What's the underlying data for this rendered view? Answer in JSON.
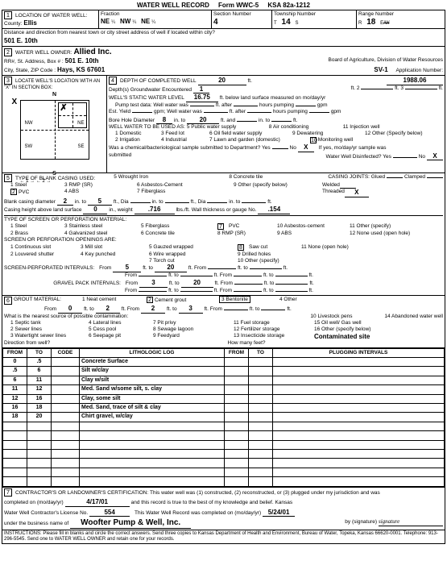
{
  "title": "WATER WELL RECORD",
  "form_no": "Form WWC-5",
  "ksa": "KSA 82a-1212",
  "loc": {
    "label1": "LOCATION OF WATER WELL:",
    "county_label": "County:",
    "county": "Ellis",
    "fraction_label": "Fraction",
    "f1": "NE",
    "f1s": "¼",
    "f2": "NW",
    "f2s": "¼",
    "f3": "NE",
    "f3s": "¼",
    "section_label": "Section Number",
    "section": "4",
    "township_label": "Township Number",
    "township": "14",
    "township_s": "S",
    "range_label": "Range Number",
    "range": "18",
    "range_ew": "E/W",
    "dist_label": "Distance and direction from nearest town or city street address of well if located within city?",
    "dist": "501 E. 10th"
  },
  "owner": {
    "label": "WATER WELL OWNER:",
    "name": "Allied Inc.",
    "addr_label": "RR#, St. Address, Box #  :",
    "addr": "501 E. 10th",
    "city_label": "City, State, ZIP Code  :",
    "city": "Hays, KS 67601",
    "board": "Board of Agriculture, Division of Water Resources",
    "sv": "SV-1",
    "appno_label": "Application Number:"
  },
  "sec3": {
    "label": "LOCATE WELL'S LOCATION WITH AN \"X\" IN SECTION BOX:",
    "n": "N",
    "s": "S",
    "nw": "NW",
    "ne": "NE",
    "sw": "SW",
    "se": "SE",
    "arrows": "← 1 →  ← 2 →"
  },
  "sec4": {
    "label": "DEPTH OF COMPLETED WELL",
    "depth": "20",
    "ft": "ft.",
    "depth_gw_label": "Depth(s) Groundwater Encountered",
    "v1": "1",
    "v2": "1988.06",
    "v3": "3",
    "static_label": "WELL'S STATIC WATER LEVEL",
    "static": "16.75",
    "static_after": "ft. below land surface measured on mo/day/yr",
    "pump_label": "Pump test data:  Well water was",
    "after": "ft. after",
    "hours": "hours pumping",
    "gpm": "gpm",
    "est_label": "Est. Yield",
    "gpm2": "gpm;  Well water was",
    "bore_label": "Bore Hole Diameter",
    "bore": "8",
    "in_to": "in. to",
    "bore_to": "20",
    "ft_and": "ft. and",
    "in_to2": "in. to",
    "ft2": "ft.",
    "use_label": "WELL WATER TO BE USED AS:",
    "opts": [
      "1  Domestic",
      "2  Irrigation",
      "3  Feed lot",
      "4  Industrial",
      "5  Public water supply",
      "6  Oil field water supply",
      "7  Lawn and garden (domestic)",
      "8  Air conditioning",
      "9  Dewatering",
      "10  Monitoring well",
      "11  Injection well",
      "12  Other (Specify below)"
    ],
    "chem_label": "Was a chemical/bacteriological sample submitted to Department?  Yes",
    "no": "No",
    "x": "X",
    "if_yes": "If yes, mo/day/yr sample was",
    "submitted": "submitted",
    "disinfect": "Water Well Disinfected?  Yes"
  },
  "sec5": {
    "label": "TYPE OF BLANK CASING USED:",
    "opts1": [
      "1  Steel",
      "2  PVC",
      "3  RMP (SR)",
      "4  ABS",
      "5  Wrought Iron",
      "6  Asbestos-Cement",
      "7  Fiberglass",
      "8  Concrete tile",
      "9  Other (specify below)"
    ],
    "joints_label": "CASING JOINTS:  Glued",
    "clamped": "Clamped",
    "welded": "Welded",
    "threaded": "Threaded",
    "bc_label": "Blank casing diameter",
    "bc_d": "2",
    "into": "in. to",
    "bc_to": "5",
    "ft_dia": "ft., Dia",
    "in_to2": "in. to",
    "ft_dia2": "ft., Dia",
    "in_to3": "in. to",
    "ft3": "ft.",
    "ch_label": "Casing height above land surface",
    "ch": "0",
    "wt": "in., weight",
    "wt_v": ".716",
    "lbsft": "lbs./ft.  Wall thickness or gauge No.",
    "gauge": ".154",
    "screen_label": "TYPE OF SCREEN OR PERFORATION MATERIAL:",
    "opts2": [
      "1  Steel",
      "2  Brass",
      "3  Stainless steel",
      "4  Galvanized steel",
      "5  Fiberglass",
      "6  Concrete tile",
      "7  PVC",
      "8  RMP (SR)",
      "9  ABS",
      "10  Asbestos-cement",
      "11  Other (specify)",
      "12  None used (open hole)"
    ],
    "open_label": "SCREEN OR PERFORATION OPENINGS ARE:",
    "opts3": [
      "1  Continuous slot",
      "2  Louvered shutter",
      "3  Mill slot",
      "4  Key punched",
      "5  Gauzed wrapped",
      "6  Wire wrapped",
      "7  Torch cut",
      "8  Saw cut",
      "9  Drilled holes",
      "10  Other (specify)",
      "11  None (open hole)"
    ],
    "spi_label": "SCREEN-PERFORATED INTERVALS:",
    "from": "From",
    "to": "ft. to",
    "ft_from": "ft.  From",
    "ft_to": "ft. to",
    "ft": "ft.",
    "spi_v1": "5",
    "spi_v2": "20",
    "gp_label": "GRAVEL PACK INTERVALS:",
    "gp_v1": "3",
    "gp_v2": "20"
  },
  "sec6": {
    "label": "GROUT MATERIAL:",
    "opts": [
      "1  Neat cement",
      "2  Cement grout",
      "3  Bentonite",
      "4  Other"
    ],
    "g_v1": "0",
    "g_v2": "2",
    "g_v3": "2",
    "g_v4": "3",
    "contam_label": "What is the nearest source of possible contamination:",
    "c_opts": [
      "1  Septic tank",
      "2  Sewer lines",
      "3  Watertight sewer lines",
      "4  Lateral lines",
      "5  Cess pool",
      "6  Seepage pit",
      "7  Pit privy",
      "8  Sewage lagoon",
      "9  Feedyard",
      "10  Livestock pens",
      "11  Fuel storage",
      "12  Fertilizer storage",
      "13  Insecticide storage",
      "14  Abandoned water well",
      "15  Oil well/ Gas well",
      "16  Other (specify below)"
    ],
    "contaminated": "Contaminated site",
    "dir_label": "Direction from well?",
    "how_many": "How many feet?"
  },
  "litho": {
    "headers": [
      "FROM",
      "TO",
      "CODE",
      "LITHOLOGIC LOG",
      "FROM",
      "TO",
      "PLUGGING INTERVALS"
    ],
    "rows": [
      [
        "0",
        ".5",
        "",
        "Concrete Surface",
        "",
        "",
        ""
      ],
      [
        ".5",
        "6",
        "",
        "Silt w/clay",
        "",
        "",
        ""
      ],
      [
        "6",
        "11",
        "",
        "Clay w/silt",
        "",
        "",
        ""
      ],
      [
        "11",
        "12",
        "",
        "Med. Sand w/some silt, s. clay",
        "",
        "",
        ""
      ],
      [
        "12",
        "16",
        "",
        "Clay, some silt",
        "",
        "",
        ""
      ],
      [
        "16",
        "18",
        "",
        "Med. Sand, trace of silt & clay",
        "",
        "",
        ""
      ],
      [
        "18",
        "20",
        "",
        "Chirt gravel, w/clay",
        "",
        "",
        ""
      ]
    ]
  },
  "sec7": {
    "label": "CONTRACTOR'S OR LANDOWNER'S CERTIFICATION:  This water well was (1) constructed, (2) reconstructed, or (3) plugged under my jurisdiction and was",
    "comp_label": "completed on (mo/day/yr)",
    "comp": "4/17/01",
    "record_true": "and this record is true to the best of my knowledge and belief.  Kansas",
    "license_label": "Water Well Contractor's License No.",
    "license": "554",
    "rec_comp": "This Water Well Record was completed on (mo/day/yr)",
    "rec_date": "5/24/01",
    "biz_label": "under the business name of",
    "biz": "Woofter Pump & Well, Inc.",
    "sig": "by (signature)"
  },
  "instructions": "INSTRUCTIONS:  Please fill in blanks and circle the correct answers.  Send three copies to Kansas Department of Health and Environment, Bureau of Water, Topeka, Kansas 66620-0001.  Telephone:  913-296-5545.  Send one to WATER WELL OWNER and retain one for your records."
}
